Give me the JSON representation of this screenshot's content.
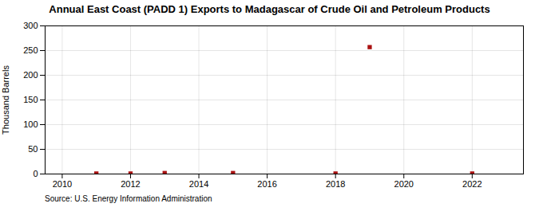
{
  "chart_data": {
    "type": "scatter",
    "title": "Annual East Coast (PADD 1) Exports to Madagascar of Crude Oil and Petroleum Products",
    "ylabel": "Thousand Barrels",
    "source": "Source: U.S. Energy Information Administration",
    "x": [
      2011,
      2012,
      2013,
      2015,
      2018,
      2019,
      2022
    ],
    "values": [
      1,
      1,
      2,
      2,
      1,
      257,
      1
    ],
    "color": "#aa1111",
    "marker": "square",
    "xlim": [
      2009.5,
      2023.5
    ],
    "ylim": [
      0,
      300
    ],
    "xticks": [
      2010,
      2012,
      2014,
      2016,
      2018,
      2020,
      2022
    ],
    "yticks": [
      0,
      50,
      100,
      150,
      200,
      250,
      300
    ],
    "grid": true
  }
}
